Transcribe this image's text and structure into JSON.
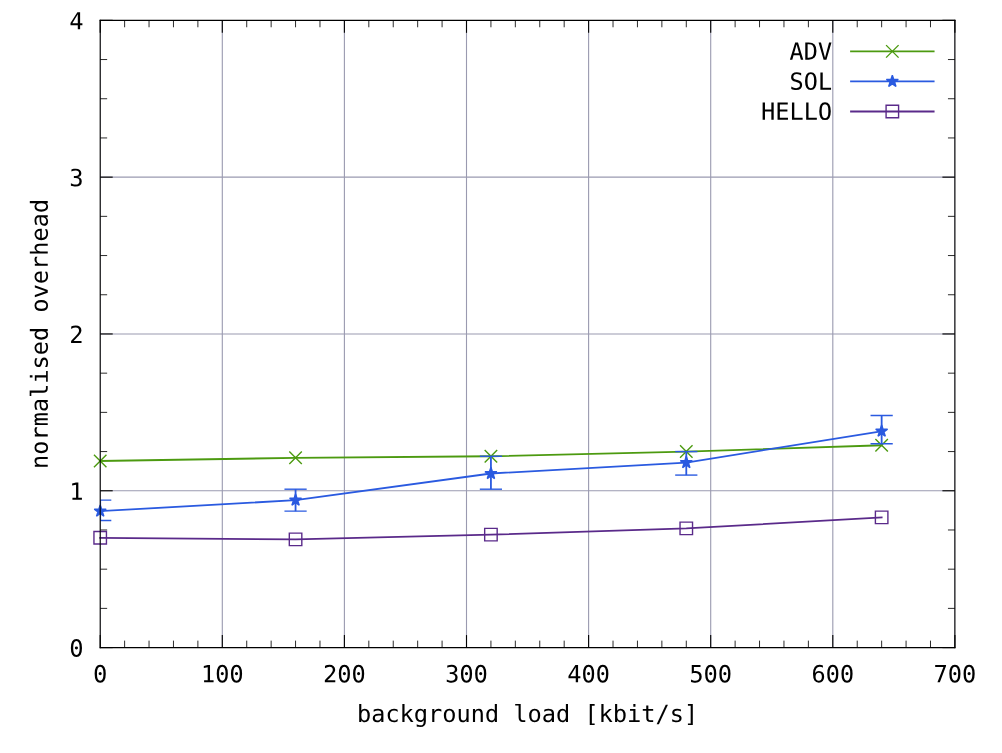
{
  "chart_data": {
    "type": "line",
    "xlabel": "background load [kbit/s]",
    "ylabel": "normalised overhead",
    "x": [
      0,
      160,
      320,
      480,
      640
    ],
    "series": [
      {
        "name": "ADV",
        "color": "#4c9a10",
        "marker": "cross",
        "values": [
          1.19,
          1.21,
          1.22,
          1.25,
          1.29
        ]
      },
      {
        "name": "SOL",
        "color": "#2a5ae0",
        "marker": "star",
        "values": [
          0.87,
          0.94,
          1.11,
          1.18,
          1.38
        ],
        "errors": [
          [
            0.81,
            0.94
          ],
          [
            0.87,
            1.01
          ],
          [
            1.01,
            1.22
          ],
          [
            1.1,
            1.25
          ],
          [
            1.3,
            1.48
          ]
        ]
      },
      {
        "name": "HELLO",
        "color": "#5a2a8a",
        "marker": "square",
        "values": [
          0.7,
          0.69,
          0.72,
          0.76,
          0.83
        ]
      }
    ],
    "xlim": [
      0,
      700
    ],
    "xticks": [
      0,
      100,
      200,
      300,
      400,
      500,
      600,
      700
    ],
    "ylim": [
      0,
      4
    ],
    "yticks": [
      0,
      1,
      2,
      3,
      4
    ],
    "grid": true,
    "legend": "top right",
    "line_style": "solid"
  }
}
